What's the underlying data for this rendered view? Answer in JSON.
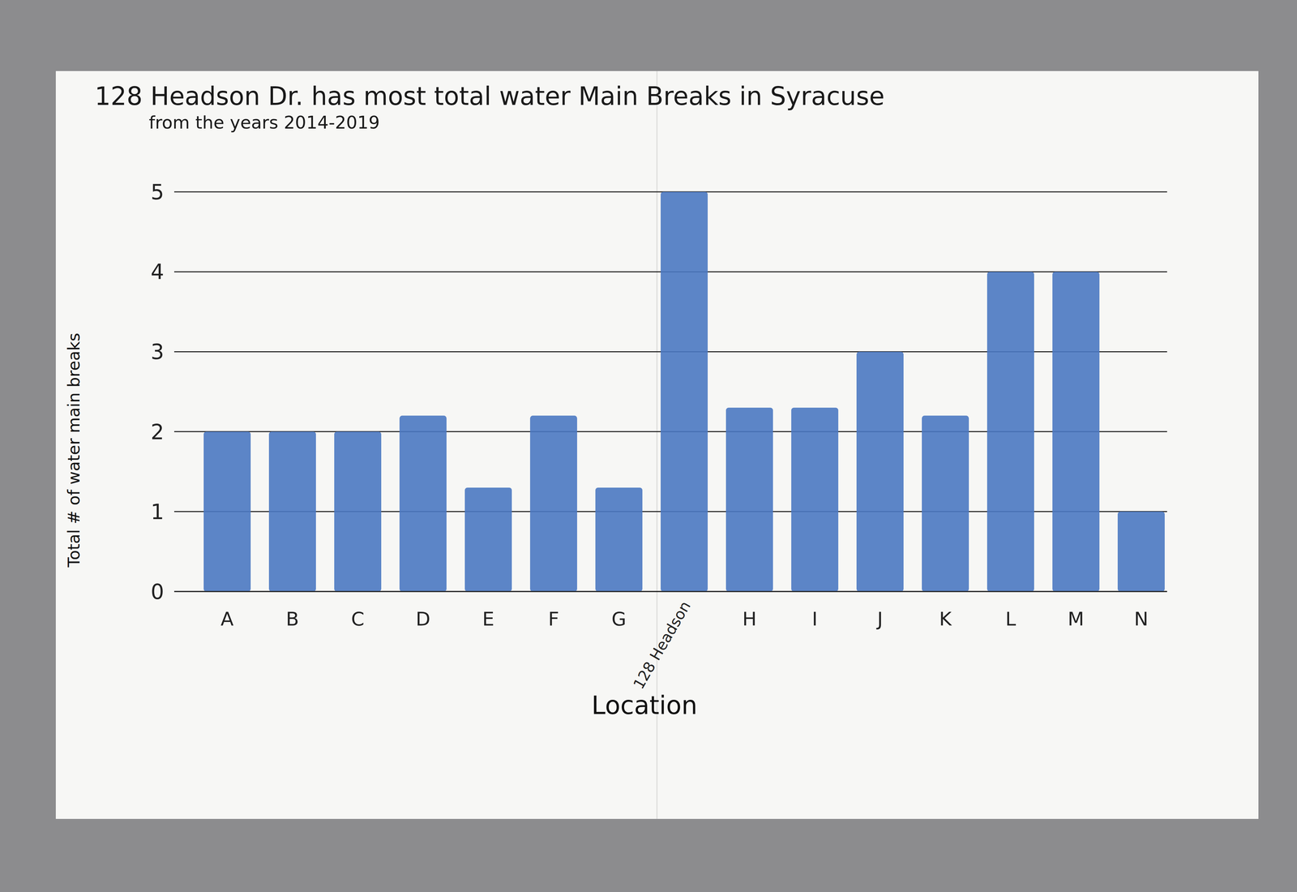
{
  "chart_data": {
    "type": "bar",
    "title": "128 Headson Dr. has most total water Main Breaks in Syracuse",
    "subtitle": "from the years 2014-2019",
    "x_label": "Location",
    "y_label": "Total # of water main breaks",
    "categories": [
      "A",
      "B",
      "C",
      "D",
      "E",
      "F",
      "G",
      "128 Headson",
      "H",
      "I",
      "J",
      "K",
      "L",
      "M",
      "N"
    ],
    "values": [
      2,
      2,
      2,
      2.2,
      1.3,
      2.2,
      1.3,
      5,
      2.3,
      2.3,
      3,
      2.2,
      4,
      4,
      1
    ],
    "color": "#4a78c2",
    "ylim": [
      0,
      5
    ],
    "yticks": [
      0,
      1,
      2,
      3,
      4,
      5
    ],
    "grid": true
  }
}
